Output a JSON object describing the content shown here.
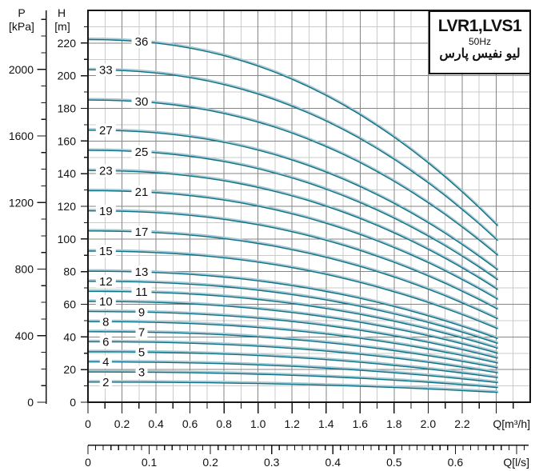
{
  "title_box": {
    "model": "LVR1,LVS1",
    "frequency": "50Hz",
    "brand": "لیو نفیس پارس"
  },
  "colors": {
    "curve": "#0e7186",
    "curve_halo": "#a6c8d2",
    "grid_major": "#858585",
    "grid_minor": "#cbcbcb",
    "axis": "#161616",
    "text": "#111111",
    "background": "#ffffff"
  },
  "chart_data": {
    "type": "line",
    "title": "LVR1,LVS1",
    "subtitle": "50Hz",
    "x_name": "Q [m³/h]",
    "y_name": "H [m]",
    "grid": "on",
    "axes": {
      "pressure": {
        "name": "P",
        "unit": "[kPa]",
        "tick_labels": [
          "0",
          "400",
          "800",
          "1200",
          "1600",
          "2000"
        ],
        "label_step_kpa": 400,
        "minor_step_kpa": 100,
        "kpa_per_m": 9.81
      },
      "head": {
        "name": "H",
        "unit": "[m]",
        "tick_labels": [
          "0",
          "20",
          "40",
          "60",
          "80",
          "100",
          "120",
          "140",
          "160",
          "180",
          "200",
          "220"
        ],
        "label_step_m": 20,
        "minor_step_m": 10,
        "range_m": [
          0,
          240
        ]
      },
      "flow_m3h": {
        "axis_label": "Q[m³/h]",
        "tick_labels": [
          "0",
          "0.2",
          "0.4",
          "0.6",
          "0.8",
          "1.0",
          "1.2",
          "1.4",
          "1.6",
          "1.8",
          "2.0",
          "2.2"
        ],
        "label_step": 0.2,
        "tick_step": 0.1,
        "range": [
          0,
          2.6
        ]
      },
      "flow_ls": {
        "axis_label": "Q[l/s]",
        "tick_labels": [
          "0",
          "0.1",
          "0.2",
          "0.3",
          "0.4",
          "0.5",
          "0.6"
        ],
        "label_step_ls": 0.1,
        "minor_tick_step_ls": 0.0125,
        "m3h_per_ls": 3.6
      }
    },
    "q_samples": [
      0,
      0.1,
      0.2,
      0.3,
      0.4,
      0.5,
      0.6,
      0.7,
      0.8,
      0.9,
      1,
      1.1,
      1.2,
      1.3,
      1.4,
      1.5,
      1.6,
      1.7,
      1.8,
      1.9,
      2,
      2.1,
      2.2,
      2.3,
      2.4,
      2.41
    ],
    "per_stage_head_m": [
      6.17,
      6.167,
      6.157,
      6.139,
      6.111,
      6.073,
      6.025,
      5.966,
      5.896,
      5.814,
      5.72,
      5.614,
      5.495,
      5.364,
      5.22,
      5.063,
      4.893,
      4.708,
      4.511,
      4.299,
      4.074,
      3.834,
      3.579,
      3.311,
      3.027,
      3.0
    ],
    "series_note": "Each curve: H(Q) = stages × per_stage_head_m(Q); curves end at Q = 2.41 m³/h",
    "series": [
      {
        "stages": 36,
        "label": "36",
        "label_side": "right"
      },
      {
        "stages": 33,
        "label": "33",
        "label_side": "left"
      },
      {
        "stages": 30,
        "label": "30",
        "label_side": "right"
      },
      {
        "stages": 27,
        "label": "27",
        "label_side": "left"
      },
      {
        "stages": 25,
        "label": "25",
        "label_side": "right"
      },
      {
        "stages": 23,
        "label": "23",
        "label_side": "left"
      },
      {
        "stages": 21,
        "label": "21",
        "label_side": "right"
      },
      {
        "stages": 19,
        "label": "19",
        "label_side": "left"
      },
      {
        "stages": 17,
        "label": "17",
        "label_side": "right"
      },
      {
        "stages": 15,
        "label": "15",
        "label_side": "left"
      },
      {
        "stages": 13,
        "label": "13",
        "label_side": "right"
      },
      {
        "stages": 12,
        "label": "12",
        "label_side": "left"
      },
      {
        "stages": 11,
        "label": "11",
        "label_side": "right"
      },
      {
        "stages": 10,
        "label": "10",
        "label_side": "left"
      },
      {
        "stages": 9,
        "label": "9",
        "label_side": "right"
      },
      {
        "stages": 8,
        "label": "8",
        "label_side": "left"
      },
      {
        "stages": 7,
        "label": "7",
        "label_side": "right"
      },
      {
        "stages": 6,
        "label": "6",
        "label_side": "left"
      },
      {
        "stages": 5,
        "label": "5",
        "label_side": "right"
      },
      {
        "stages": 4,
        "label": "4",
        "label_side": "left"
      },
      {
        "stages": 3,
        "label": "3",
        "label_side": "right"
      },
      {
        "stages": 2,
        "label": "2",
        "label_side": "left"
      }
    ],
    "label_q_positions": {
      "left": 0.105,
      "right": 0.315
    }
  }
}
